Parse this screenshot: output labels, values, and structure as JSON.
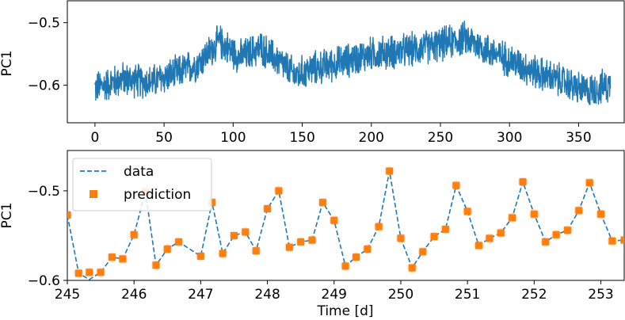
{
  "chart_data": [
    {
      "type": "line",
      "ylabel": "PC1",
      "xlabel": "",
      "xlim": [
        -20,
        383
      ],
      "ylim": [
        -0.66,
        -0.465
      ],
      "x_ticks": [
        0,
        50,
        100,
        150,
        200,
        250,
        300,
        350
      ],
      "x_tick_labels": [
        "0",
        "50",
        "100",
        "150",
        "200",
        "250",
        "300",
        "350"
      ],
      "y_ticks": [
        -0.5,
        -0.6
      ],
      "y_tick_labels": [
        "−0.5",
        "−0.6"
      ],
      "colors": {
        "line": "#1f77b4"
      },
      "series": [
        {
          "name": "PC1",
          "x_range": [
            0,
            373
          ],
          "trend": [
            {
              "x": 0,
              "y": -0.605
            },
            {
              "x": 20,
              "y": -0.59
            },
            {
              "x": 40,
              "y": -0.595
            },
            {
              "x": 60,
              "y": -0.58
            },
            {
              "x": 75,
              "y": -0.565
            },
            {
              "x": 90,
              "y": -0.53
            },
            {
              "x": 105,
              "y": -0.555
            },
            {
              "x": 120,
              "y": -0.54
            },
            {
              "x": 135,
              "y": -0.565
            },
            {
              "x": 145,
              "y": -0.585
            },
            {
              "x": 155,
              "y": -0.575
            },
            {
              "x": 175,
              "y": -0.565
            },
            {
              "x": 200,
              "y": -0.55
            },
            {
              "x": 225,
              "y": -0.545
            },
            {
              "x": 250,
              "y": -0.535
            },
            {
              "x": 268,
              "y": -0.525
            },
            {
              "x": 285,
              "y": -0.545
            },
            {
              "x": 300,
              "y": -0.56
            },
            {
              "x": 320,
              "y": -0.58
            },
            {
              "x": 340,
              "y": -0.595
            },
            {
              "x": 355,
              "y": -0.61
            },
            {
              "x": 373,
              "y": -0.6
            }
          ],
          "noise_amplitude": 0.045
        }
      ]
    },
    {
      "type": "line",
      "xlabel": "Time [d]",
      "ylabel": "PC1",
      "xlim": [
        245,
        253.35
      ],
      "ylim": [
        -0.6,
        -0.455
      ],
      "x_ticks": [
        245,
        246,
        247,
        248,
        249,
        250,
        251,
        252,
        253
      ],
      "x_tick_labels": [
        "245",
        "246",
        "247",
        "248",
        "249",
        "250",
        "251",
        "252",
        "253"
      ],
      "y_ticks": [
        -0.5,
        -0.6
      ],
      "y_tick_labels": [
        "−0.5",
        "−0.6"
      ],
      "legend": {
        "position": "top-left",
        "entries": [
          "data",
          "prediction"
        ]
      },
      "colors": {
        "data": "#1f77b4",
        "prediction": "#ff7f0e"
      },
      "series": [
        {
          "name": "data",
          "style": "dashed",
          "x": [
            245.0,
            245.17,
            245.33,
            245.5,
            245.67,
            245.83,
            246.0,
            246.17,
            246.33,
            246.5,
            246.67,
            247.0,
            247.17,
            247.33,
            247.5,
            247.67,
            247.83,
            248.0,
            248.17,
            248.33,
            248.5,
            248.67,
            248.83,
            249.0,
            249.17,
            249.33,
            249.5,
            249.67,
            249.83,
            250.0,
            250.17,
            250.33,
            250.5,
            250.67,
            250.83,
            251.0,
            251.17,
            251.33,
            251.5,
            251.67,
            251.83,
            252.0,
            252.17,
            252.33,
            252.5,
            252.67,
            252.83,
            253.0,
            253.17,
            253.35
          ],
          "y": [
            -0.527,
            -0.592,
            -0.599,
            -0.591,
            -0.574,
            -0.576,
            -0.549,
            -0.501,
            -0.583,
            -0.565,
            -0.557,
            -0.573,
            -0.513,
            -0.57,
            -0.55,
            -0.546,
            -0.567,
            -0.52,
            -0.5,
            -0.563,
            -0.557,
            -0.555,
            -0.513,
            -0.533,
            -0.584,
            -0.574,
            -0.565,
            -0.54,
            -0.478,
            -0.553,
            -0.586,
            -0.568,
            -0.551,
            -0.543,
            -0.494,
            -0.523,
            -0.561,
            -0.553,
            -0.547,
            -0.53,
            -0.49,
            -0.526,
            -0.557,
            -0.549,
            -0.544,
            -0.522,
            -0.491,
            -0.526,
            -0.556,
            -0.555
          ]
        },
        {
          "name": "prediction",
          "style": "square-markers",
          "x": [
            245.0,
            245.17,
            245.33,
            245.5,
            245.67,
            245.83,
            246.0,
            246.17,
            246.33,
            246.5,
            246.67,
            247.0,
            247.17,
            247.33,
            247.5,
            247.67,
            247.83,
            248.0,
            248.17,
            248.33,
            248.5,
            248.67,
            248.83,
            249.0,
            249.17,
            249.33,
            249.5,
            249.67,
            249.83,
            250.0,
            250.17,
            250.33,
            250.5,
            250.67,
            250.83,
            251.0,
            251.17,
            251.33,
            251.5,
            251.67,
            251.83,
            252.0,
            252.17,
            252.33,
            252.5,
            252.67,
            252.83,
            253.0,
            253.17,
            253.35
          ],
          "y": [
            -0.527,
            -0.592,
            -0.591,
            -0.591,
            -0.574,
            -0.576,
            -0.549,
            -0.501,
            -0.583,
            -0.565,
            -0.557,
            -0.573,
            -0.513,
            -0.57,
            -0.55,
            -0.546,
            -0.567,
            -0.52,
            -0.5,
            -0.563,
            -0.557,
            -0.555,
            -0.513,
            -0.533,
            -0.584,
            -0.574,
            -0.565,
            -0.54,
            -0.478,
            -0.553,
            -0.586,
            -0.568,
            -0.551,
            -0.543,
            -0.494,
            -0.523,
            -0.561,
            -0.553,
            -0.547,
            -0.53,
            -0.49,
            -0.526,
            -0.557,
            -0.549,
            -0.544,
            -0.522,
            -0.491,
            -0.526,
            -0.556,
            -0.555
          ]
        }
      ]
    }
  ]
}
